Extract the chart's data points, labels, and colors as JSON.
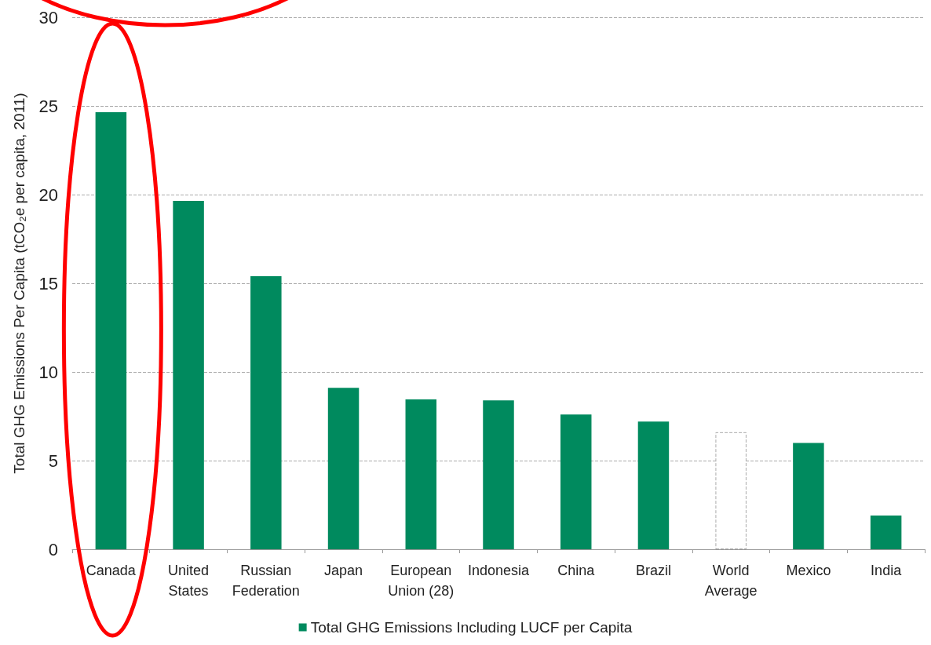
{
  "chart_data": {
    "type": "bar",
    "ylabel": "Total GHG Emissions Per Capita (tCO₂e per capita, 2011)",
    "categories": [
      "Canada",
      "United States",
      "Russian Federation",
      "Japan",
      "European Union (28)",
      "Indonesia",
      "China",
      "Brazil",
      "World Average",
      "Mexico",
      "India"
    ],
    "series": [
      {
        "name": "Total GHG Emissions Including LUCF per Capita",
        "color": "#008a5e",
        "values": [
          24.65,
          19.65,
          15.4,
          9.1,
          8.45,
          8.4,
          7.6,
          7.2,
          6.6,
          6.0,
          1.9
        ],
        "colors": [
          "#008a5e",
          "#008a5e",
          "#008a5e",
          "#008a5e",
          "#008a5e",
          "#008a5e",
          "#008a5e",
          "#008a5e",
          "#ffffff",
          "#008a5e",
          "#008a5e"
        ]
      }
    ],
    "ylim": [
      0,
      30
    ],
    "yticks": [
      0,
      5,
      10,
      15,
      20,
      25,
      30
    ],
    "grid": "y",
    "legend": "bottom"
  }
}
